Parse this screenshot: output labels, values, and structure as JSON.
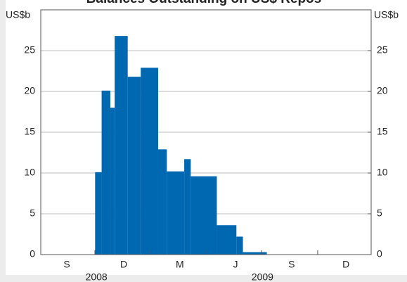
{
  "chart_data": {
    "type": "histogram",
    "title": "Balances Outstanding on US$ Repos",
    "y_unit": "US$b",
    "y2_unit": "US$b",
    "bins": [
      12.5,
      14,
      16,
      17,
      20,
      23,
      27,
      29,
      33,
      34.5,
      40.5,
      45,
      46.5,
      52
    ],
    "values": [
      10.1,
      20.1,
      18,
      26.8,
      21.8,
      22.9,
      12.9,
      10.2,
      11.7,
      9.6,
      3.6,
      2.2,
      0.3
    ],
    "color": "#0067b1",
    "xlim": [
      0,
      76
    ],
    "xticks": [
      {
        "value": 6,
        "label": "S"
      },
      {
        "value": 19.1,
        "label": "D"
      },
      {
        "value": 32,
        "label": "M"
      },
      {
        "value": 44.8,
        "label": "J"
      },
      {
        "value": 57.7,
        "label": "S"
      },
      {
        "value": 70.2,
        "label": "D"
      }
    ],
    "xminorticks": [
      12.45,
      25.1,
      37.8,
      50.8,
      63.7
    ],
    "year_labels": [
      {
        "value": 12.8,
        "label": "2008"
      },
      {
        "value": 51,
        "label": "2009"
      }
    ],
    "ylim": [
      0,
      30
    ],
    "yticks": [
      0,
      5,
      10,
      15,
      20,
      25
    ],
    "y2lim": [
      0,
      30
    ],
    "y2ticks": [
      0,
      5,
      10,
      15,
      20,
      25
    ],
    "grid": true
  }
}
